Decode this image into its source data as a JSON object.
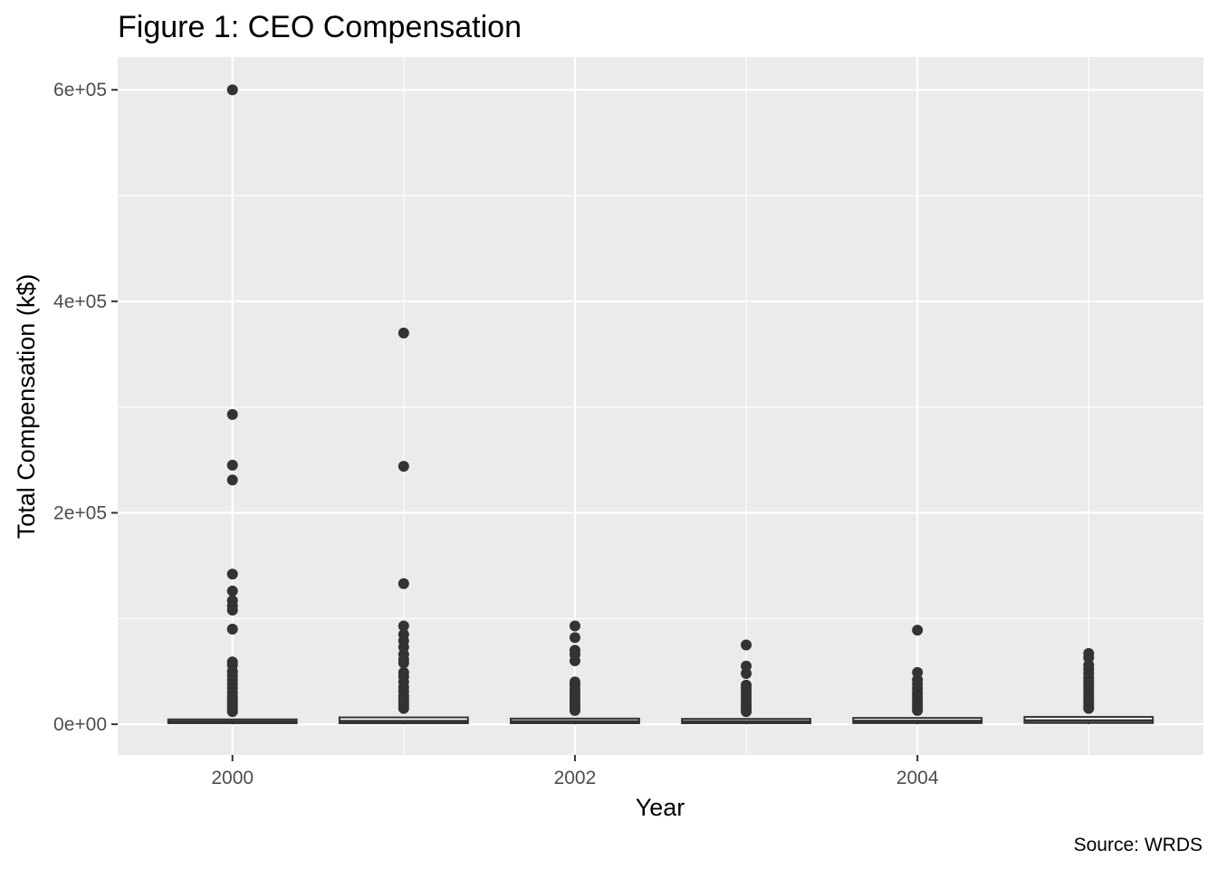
{
  "chart_data": {
    "type": "boxplot",
    "title": "Figure 1: CEO Compensation",
    "xlabel": "Year",
    "ylabel": "Total Compensation (k$)",
    "caption": "Source: WRDS",
    "ylim": [
      -29000,
      631000
    ],
    "xlim": [
      1999.33,
      2005.67
    ],
    "y_ticks": [
      {
        "value": 0,
        "label": "0e+00"
      },
      {
        "value": 200000,
        "label": "2e+05"
      },
      {
        "value": 400000,
        "label": "4e+05"
      },
      {
        "value": 600000,
        "label": "6e+05"
      }
    ],
    "y_minor": [
      100000,
      300000,
      500000
    ],
    "x_ticks": [
      {
        "value": 2000,
        "label": "2000"
      },
      {
        "value": 2002,
        "label": "2002"
      },
      {
        "value": 2004,
        "label": "2004"
      }
    ],
    "x_minor": [
      2001,
      2003,
      2005
    ],
    "series": [
      {
        "year": 2000,
        "q1": 1000,
        "median": 2600,
        "q3": 4600,
        "outliers": [
          600000,
          293000,
          245000,
          231000,
          142000,
          126000,
          117000,
          112000,
          108000,
          90000,
          59000,
          56000,
          50000,
          46000,
          42000,
          38000,
          34000,
          30000,
          26000,
          23000,
          20000,
          17000,
          14000,
          12000
        ]
      },
      {
        "year": 2001,
        "q1": 1000,
        "median": 2900,
        "q3": 6500,
        "outliers": [
          370000,
          244000,
          133000,
          93000,
          85000,
          79000,
          73000,
          66000,
          61000,
          58000,
          49000,
          45000,
          40000,
          35000,
          31000,
          27000,
          24000,
          21000,
          18000,
          15000
        ]
      },
      {
        "year": 2002,
        "q1": 1000,
        "median": 2700,
        "q3": 5400,
        "outliers": [
          93000,
          82000,
          70000,
          66000,
          60000,
          40000,
          37000,
          33000,
          30000,
          27000,
          24000,
          21000,
          18000,
          15000,
          13000
        ]
      },
      {
        "year": 2003,
        "q1": 1000,
        "median": 2600,
        "q3": 5100,
        "outliers": [
          75000,
          55000,
          48000,
          37000,
          34000,
          31000,
          28000,
          25000,
          22000,
          19000,
          16000,
          14000,
          12000
        ]
      },
      {
        "year": 2004,
        "q1": 1100,
        "median": 3000,
        "q3": 6000,
        "outliers": [
          89000,
          49000,
          42000,
          38000,
          34000,
          30000,
          27000,
          24000,
          21000,
          18000,
          15000,
          13000
        ]
      },
      {
        "year": 2005,
        "q1": 1200,
        "median": 3400,
        "q3": 7000,
        "outliers": [
          67000,
          63000,
          56000,
          52000,
          48000,
          44000,
          41000,
          38000,
          35000,
          32000,
          29000,
          26000,
          23000,
          20000,
          17000,
          15000
        ]
      }
    ]
  }
}
